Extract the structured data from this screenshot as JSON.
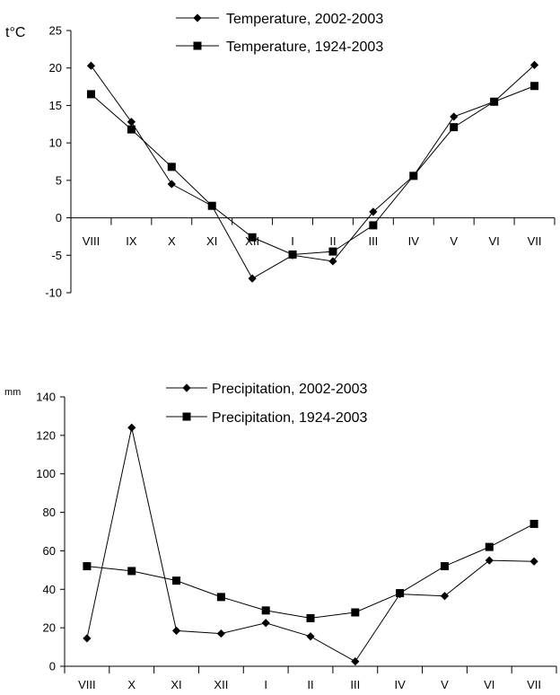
{
  "chart_data": [
    {
      "type": "line",
      "ylabel": "t°C",
      "ylim": [
        -10,
        25
      ],
      "yticks": [
        -10,
        -5,
        0,
        5,
        10,
        15,
        20,
        25
      ],
      "categories": [
        "VIII",
        "IX",
        "X",
        "XI",
        "XII",
        "I",
        "II",
        "III",
        "IV",
        "V",
        "VI",
        "VII"
      ],
      "legend_position": "top-center",
      "grid": false,
      "series": [
        {
          "name": "Temperature, 2002-2003",
          "marker": "diamond",
          "values": [
            20.3,
            12.8,
            4.5,
            1.6,
            -8.1,
            -5.0,
            -5.8,
            0.8,
            5.6,
            13.5,
            15.5,
            20.4
          ]
        },
        {
          "name": "Temperature, 1924-2003",
          "marker": "square",
          "values": [
            16.5,
            11.8,
            6.8,
            1.6,
            -2.6,
            -4.9,
            -4.5,
            -1.0,
            5.6,
            12.1,
            15.5,
            17.6
          ]
        }
      ]
    },
    {
      "type": "line",
      "ylabel": "mm",
      "ylim": [
        0,
        140
      ],
      "yticks": [
        0,
        20,
        40,
        60,
        80,
        100,
        120,
        140
      ],
      "categories": [
        "VIII",
        "X",
        "XI",
        "XII",
        "I",
        "II",
        "III",
        "IV",
        "V",
        "VI",
        "VII"
      ],
      "legend_position": "top-center",
      "grid": false,
      "series": [
        {
          "name": "Precipitation, 2002-2003",
          "marker": "diamond",
          "values": [
            14.5,
            124,
            18.5,
            17,
            22.5,
            15.5,
            2.5,
            37.5,
            36.5,
            55,
            54.5
          ]
        },
        {
          "name": "Precipitation, 1924-2003",
          "marker": "square",
          "values": [
            52,
            49.5,
            44.5,
            36,
            29,
            25,
            28,
            38,
            52,
            62,
            74
          ]
        }
      ]
    }
  ]
}
